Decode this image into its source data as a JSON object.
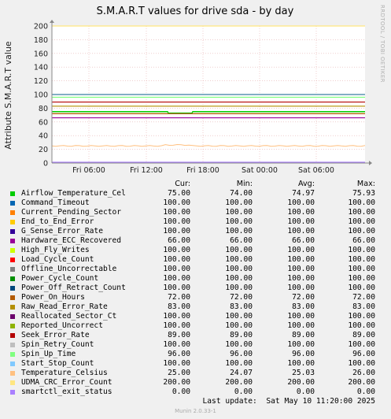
{
  "chart_data": {
    "type": "line",
    "title": "S.M.A.R.T values for drive sda - by day",
    "ylabel": "Attribute S.M.A.R.T value",
    "ylim": [
      0,
      200
    ],
    "yticks": [
      0,
      20,
      40,
      60,
      80,
      100,
      120,
      140,
      160,
      180,
      200
    ],
    "xticks": [
      "Fri 06:00",
      "Fri 12:00",
      "Fri 18:00",
      "Sat 00:00",
      "Sat 06:00"
    ],
    "grid": true,
    "legend_position": "bottom",
    "columns": [
      "Cur:",
      "Min:",
      "Avg:",
      "Max:"
    ],
    "series": [
      {
        "name": "Airflow_Temperature_Cel",
        "color": "#00cc00",
        "cur": "75.00",
        "min": "74.00",
        "avg": "74.97",
        "max": "75.93",
        "dip": true
      },
      {
        "name": "Command_Timeout",
        "color": "#0066b3",
        "cur": "100.00",
        "min": "100.00",
        "avg": "100.00",
        "max": "100.00"
      },
      {
        "name": "Current_Pending_Sector",
        "color": "#ff8000",
        "cur": "100.00",
        "min": "100.00",
        "avg": "100.00",
        "max": "100.00"
      },
      {
        "name": "End_to_End_Error",
        "color": "#ffcc00",
        "cur": "100.00",
        "min": "100.00",
        "avg": "100.00",
        "max": "100.00"
      },
      {
        "name": "G_Sense_Error_Rate",
        "color": "#330099",
        "cur": "100.00",
        "min": "100.00",
        "avg": "100.00",
        "max": "100.00"
      },
      {
        "name": "Hardware_ECC_Recovered",
        "color": "#990099",
        "cur": "66.00",
        "min": "66.00",
        "avg": "66.00",
        "max": "66.00"
      },
      {
        "name": "High_Fly_Writes",
        "color": "#ccff00",
        "cur": "100.00",
        "min": "100.00",
        "avg": "100.00",
        "max": "100.00"
      },
      {
        "name": "Load_Cycle_Count",
        "color": "#ff0000",
        "cur": "100.00",
        "min": "100.00",
        "avg": "100.00",
        "max": "100.00"
      },
      {
        "name": "Offline_Uncorrectable",
        "color": "#808080",
        "cur": "100.00",
        "min": "100.00",
        "avg": "100.00",
        "max": "100.00"
      },
      {
        "name": "Power_Cycle_Count",
        "color": "#008f00",
        "cur": "100.00",
        "min": "100.00",
        "avg": "100.00",
        "max": "100.00"
      },
      {
        "name": "Power_Off_Retract_Count",
        "color": "#00487d",
        "cur": "100.00",
        "min": "100.00",
        "avg": "100.00",
        "max": "100.00"
      },
      {
        "name": "Power_On_Hours",
        "color": "#b35a00",
        "cur": "72.00",
        "min": "72.00",
        "avg": "72.00",
        "max": "72.00"
      },
      {
        "name": "Raw_Read_Error_Rate",
        "color": "#b38f00",
        "cur": "83.00",
        "min": "83.00",
        "avg": "83.00",
        "max": "83.00"
      },
      {
        "name": "Reallocated_Sector_Ct",
        "color": "#6b006b",
        "cur": "100.00",
        "min": "100.00",
        "avg": "100.00",
        "max": "100.00"
      },
      {
        "name": "Reported_Uncorrect",
        "color": "#8fb300",
        "cur": "100.00",
        "min": "100.00",
        "avg": "100.00",
        "max": "100.00"
      },
      {
        "name": "Seek_Error_Rate",
        "color": "#b30000",
        "cur": "89.00",
        "min": "89.00",
        "avg": "89.00",
        "max": "89.00"
      },
      {
        "name": "Spin_Retry_Count",
        "color": "#bebebe",
        "cur": "100.00",
        "min": "100.00",
        "avg": "100.00",
        "max": "100.00"
      },
      {
        "name": "Spin_Up_Time",
        "color": "#80ff80",
        "cur": "96.00",
        "min": "96.00",
        "avg": "96.00",
        "max": "96.00"
      },
      {
        "name": "Start_Stop_Count",
        "color": "#80c9ff",
        "cur": "100.00",
        "min": "100.00",
        "avg": "100.00",
        "max": "100.00"
      },
      {
        "name": "Temperature_Celsius",
        "color": "#ffc080",
        "cur": "25.00",
        "min": "24.07",
        "avg": "25.03",
        "max": "26.00",
        "wavy": true
      },
      {
        "name": "UDMA_CRC_Error_Count",
        "color": "#ffe680",
        "cur": "200.00",
        "min": "200.00",
        "avg": "200.00",
        "max": "200.00"
      },
      {
        "name": "smartctl_exit_status",
        "color": "#aa80ff",
        "cur": "0.00",
        "min": "0.00",
        "avg": "0.00",
        "max": "0.00"
      }
    ]
  },
  "watermark": "RRDTOOL / TOBI OETIKER",
  "last_update": "Last update:  Sat May 10 11:20:00 2025",
  "munin_version": "Munin 2.0.33-1"
}
